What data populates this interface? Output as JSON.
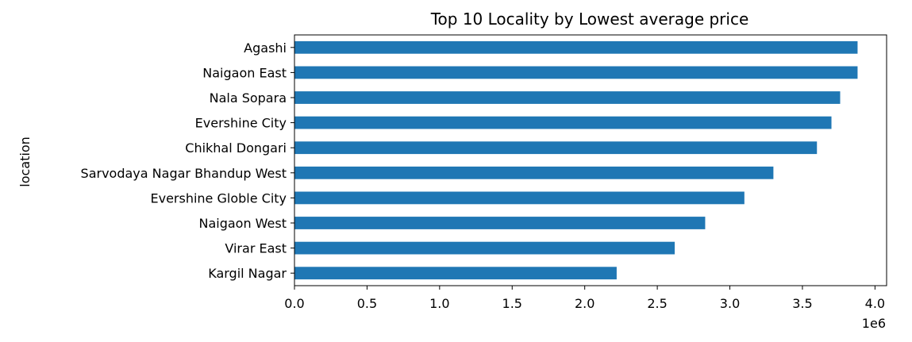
{
  "chart_data": {
    "type": "bar",
    "orientation": "horizontal",
    "title": "Top 10 Locality by Lowest average price",
    "ylabel": "location",
    "xlabel": "",
    "x_offset_label": "1e6",
    "xlim": [
      0,
      4.08
    ],
    "x_ticks": [
      0.0,
      0.5,
      1.0,
      1.5,
      2.0,
      2.5,
      3.0,
      3.5,
      4.0
    ],
    "x_tick_labels": [
      "0.0",
      "0.5",
      "1.0",
      "1.5",
      "2.0",
      "2.5",
      "3.0",
      "3.5",
      "4.0"
    ],
    "categories": [
      "Agashi",
      "Naigaon East",
      "Nala Sopara",
      "Evershine City",
      "Chikhal Dongari",
      "Sarvodaya Nagar Bhandup West",
      "Evershine Globle City",
      "Naigaon West",
      "Virar East",
      "Kargil Nagar"
    ],
    "values": [
      3.88,
      3.88,
      3.76,
      3.7,
      3.6,
      3.3,
      3.1,
      2.83,
      2.62,
      2.22
    ],
    "bar_color": "#1f77b4",
    "grid": false,
    "legend": false
  }
}
